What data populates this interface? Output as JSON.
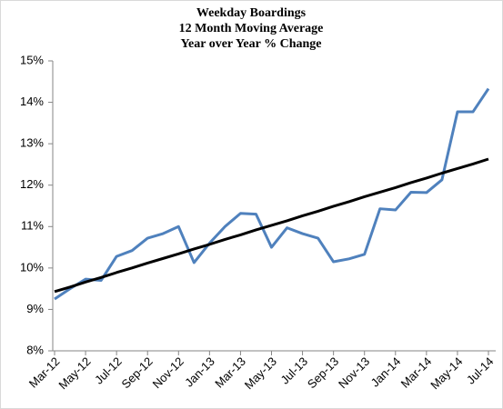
{
  "chart_data": {
    "type": "line",
    "title": [
      "Weekday Boardings",
      "12 Month Moving Average",
      "Year over Year % Change"
    ],
    "categories": [
      "Mar-12",
      null,
      "May-12",
      null,
      "Jul-12",
      null,
      "Sep-12",
      null,
      "Nov-12",
      null,
      "Jan-13",
      null,
      "Mar-13",
      null,
      "May-13",
      null,
      "Jul-13",
      null,
      "Sep-13",
      null,
      "Nov-13",
      null,
      "Jan-14",
      null,
      "Mar-14",
      null,
      "May-14",
      null,
      "Jul-14"
    ],
    "series": [
      {
        "color": "#4f81bd",
        "values": [
          9.25,
          9.5,
          9.73,
          9.7,
          10.28,
          10.42,
          10.72,
          10.83,
          11.0,
          10.13,
          10.6,
          11.0,
          11.32,
          11.3,
          10.5,
          10.97,
          10.83,
          10.72,
          10.15,
          10.22,
          10.33,
          11.43,
          11.4,
          11.83,
          11.82,
          12.13,
          13.77,
          13.77,
          14.33
        ]
      },
      {
        "color": "#000000",
        "values": [
          9.43,
          9.54,
          9.66,
          9.77,
          9.89,
          10.0,
          10.12,
          10.23,
          10.34,
          10.46,
          10.57,
          10.69,
          10.8,
          10.92,
          11.03,
          11.14,
          11.26,
          11.37,
          11.49,
          11.6,
          11.72,
          11.83,
          11.94,
          12.06,
          12.17,
          12.29,
          12.4,
          12.51,
          12.63
        ]
      }
    ],
    "ylim": [
      8,
      15
    ],
    "yticks": [
      {
        "value": 8,
        "label": "8%"
      },
      {
        "value": 9,
        "label": "9%"
      },
      {
        "value": 10,
        "label": "10%"
      },
      {
        "value": 11,
        "label": "11%"
      },
      {
        "value": 12,
        "label": "12%"
      },
      {
        "value": 13,
        "label": "13%"
      },
      {
        "value": 14,
        "label": "14%"
      },
      {
        "value": 15,
        "label": "15%"
      }
    ],
    "grid": false
  }
}
